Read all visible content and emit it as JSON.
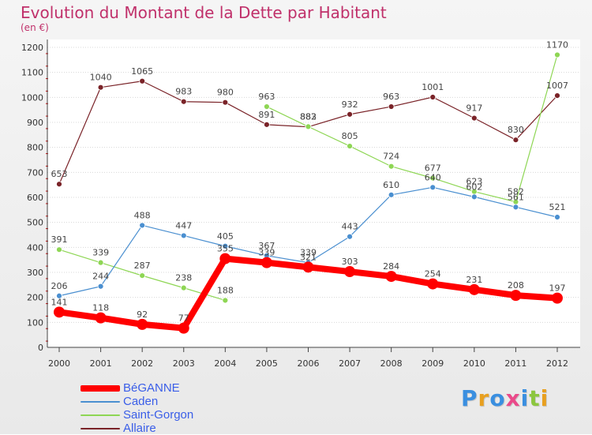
{
  "title": "Evolution du Montant de la Dette par Habitant",
  "unit": "(en €)",
  "logo": {
    "text": "Proxiti",
    "letters": [
      {
        "ch": "P",
        "color": "#3a8fe0"
      },
      {
        "ch": "r",
        "color": "#e8a020"
      },
      {
        "ch": "o",
        "color": "#3a8fe0"
      },
      {
        "ch": "x",
        "color": "#ea4a8a"
      },
      {
        "ch": "i",
        "color": "#3a8fe0"
      },
      {
        "ch": "t",
        "color": "#8cc63f"
      },
      {
        "ch": "i",
        "color": "#e8a020"
      }
    ]
  },
  "chart_data": {
    "type": "line",
    "title": "Evolution du Montant de la Dette par Habitant",
    "subtitle": "(en €)",
    "xlabel": "",
    "ylabel": "",
    "x": [
      "2000",
      "2001",
      "2002",
      "2003",
      "2004",
      "2005",
      "2006",
      "2007",
      "2008",
      "2009",
      "2010",
      "2011",
      "2012"
    ],
    "ylim": [
      0,
      1200
    ],
    "yticks": [
      "0",
      "100",
      "200",
      "300",
      "400",
      "500",
      "600",
      "700",
      "800",
      "900",
      "1000",
      "1100",
      "1200"
    ],
    "grid": "horizontal",
    "legend_position": "bottom-left",
    "series": [
      {
        "name": "BéGANNE",
        "color": "#ff0000",
        "stroke": 8,
        "marker": 7,
        "values": [
          141,
          118,
          92,
          77,
          355,
          339,
          321,
          303,
          284,
          254,
          231,
          208,
          197
        ],
        "labels": [
          "141",
          "118",
          "92",
          "77",
          "355",
          "339",
          "321",
          "303",
          "284",
          "254",
          "231",
          "208",
          "197"
        ]
      },
      {
        "name": "Caden",
        "color": "#4a8fd0",
        "stroke": 1.2,
        "marker": 3.5,
        "values": [
          206,
          244,
          488,
          447,
          405,
          367,
          339,
          443,
          610,
          640,
          602,
          561,
          521
        ],
        "labels": [
          "206",
          "244",
          "488",
          "447",
          "405",
          "367",
          "339",
          "443",
          "610",
          "640",
          "602",
          "561",
          "521"
        ]
      },
      {
        "name": "Saint-Gorgon",
        "color": "#8ed654",
        "stroke": 1.2,
        "marker": 3.5,
        "values": [
          391,
          339,
          287,
          238,
          188,
          963,
          883,
          805,
          724,
          677,
          623,
          582,
          1170
        ],
        "labels": [
          "391",
          "339",
          "287",
          "238",
          "188",
          "963",
          "883",
          "805",
          "724",
          "677",
          "623",
          "582",
          "1170"
        ],
        "segments": [
          [
            0,
            4
          ],
          [
            5,
            12
          ]
        ]
      },
      {
        "name": "Allaire",
        "color": "#7a2328",
        "stroke": 1.2,
        "marker": 3.5,
        "values": [
          653,
          1040,
          1065,
          983,
          980,
          891,
          882,
          932,
          963,
          1001,
          917,
          830,
          1007
        ],
        "labels": [
          "653",
          "1040",
          "1065",
          "983",
          "980",
          "891",
          "882",
          "932",
          "963",
          "1001",
          "917",
          "830",
          "1007"
        ]
      }
    ]
  }
}
